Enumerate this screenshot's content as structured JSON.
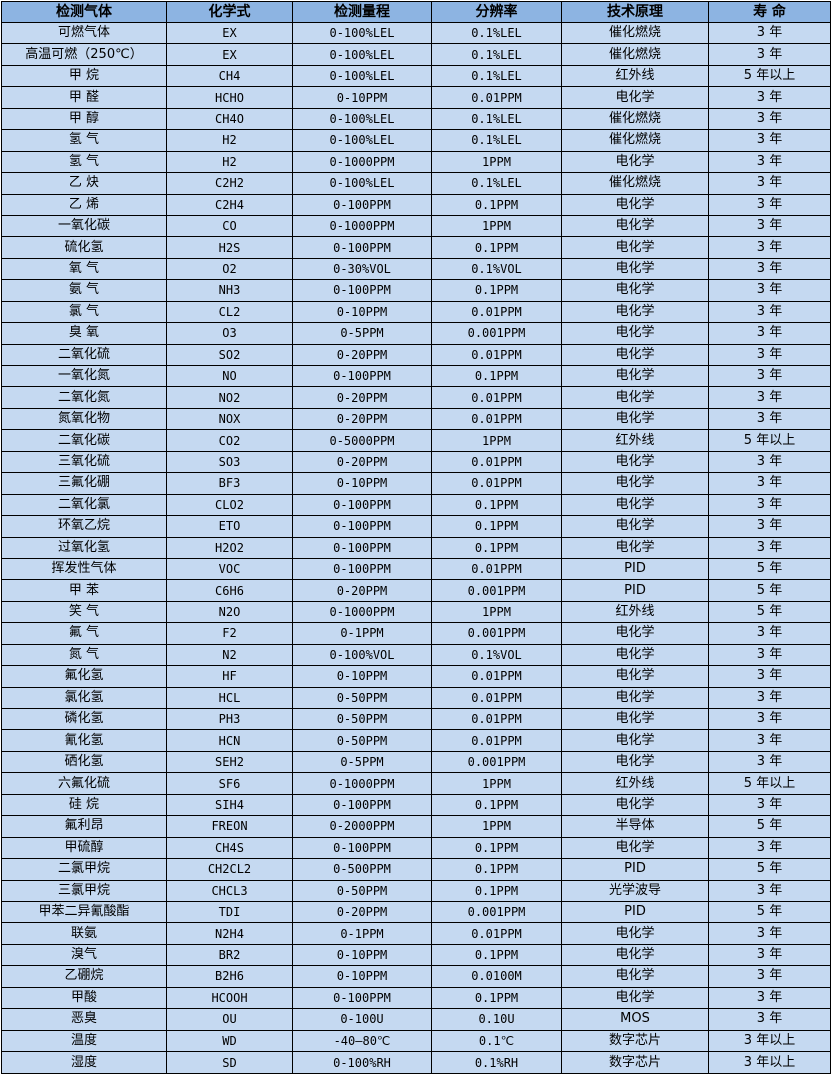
{
  "colors": {
    "header_bg": "#8db4e2",
    "row_bg": "#c5d9f1",
    "border": "#000000"
  },
  "table": {
    "headers": [
      "检测气体",
      "化学式",
      "检测量程",
      "分辨率",
      "技术原理",
      "寿 命"
    ],
    "rows": [
      [
        "可燃气体",
        "EX",
        "0-100%LEL",
        "0.1%LEL",
        "催化燃烧",
        "3 年"
      ],
      [
        "高温可燃（250℃）",
        "EX",
        "0-100%LEL",
        "0.1%LEL",
        "催化燃烧",
        "3 年"
      ],
      [
        "甲 烷",
        "CH4",
        "0-100%LEL",
        "0.1%LEL",
        "红外线",
        "5 年以上"
      ],
      [
        "甲 醛",
        "HCHO",
        "0-10PPM",
        "0.01PPM",
        "电化学",
        "3 年"
      ],
      [
        "甲 醇",
        "CH4O",
        "0-100%LEL",
        "0.1%LEL",
        "催化燃烧",
        "3 年"
      ],
      [
        "氢 气",
        "H2",
        "0-100%LEL",
        "0.1%LEL",
        "催化燃烧",
        "3 年"
      ],
      [
        "氢 气",
        "H2",
        "0-1000PPM",
        "1PPM",
        "电化学",
        "3 年"
      ],
      [
        "乙 炔",
        "C2H2",
        "0-100%LEL",
        "0.1%LEL",
        "催化燃烧",
        "3 年"
      ],
      [
        "乙 烯",
        "C2H4",
        "0-100PPM",
        "0.1PPM",
        "电化学",
        "3 年"
      ],
      [
        "一氧化碳",
        "CO",
        "0-1000PPM",
        "1PPM",
        "电化学",
        "3 年"
      ],
      [
        "硫化氢",
        "H2S",
        "0-100PPM",
        "0.1PPM",
        "电化学",
        "3 年"
      ],
      [
        "氧 气",
        "O2",
        "0-30%VOL",
        "0.1%VOL",
        "电化学",
        "3 年"
      ],
      [
        "氨 气",
        "NH3",
        "0-100PPM",
        "0.1PPM",
        "电化学",
        "3 年"
      ],
      [
        "氯 气",
        "CL2",
        "0-10PPM",
        "0.01PPM",
        "电化学",
        "3 年"
      ],
      [
        "臭 氧",
        "O3",
        "0-5PPM",
        "0.001PPM",
        "电化学",
        "3 年"
      ],
      [
        "二氧化硫",
        "SO2",
        "0-20PPM",
        "0.01PPM",
        "电化学",
        "3 年"
      ],
      [
        "一氧化氮",
        "NO",
        "0-100PPM",
        "0.1PPM",
        "电化学",
        "3 年"
      ],
      [
        "二氧化氮",
        "NO2",
        "0-20PPM",
        "0.01PPM",
        "电化学",
        "3 年"
      ],
      [
        "氮氧化物",
        "NOX",
        "0-20PPM",
        "0.01PPM",
        "电化学",
        "3 年"
      ],
      [
        "二氧化碳",
        "CO2",
        "0-5000PPM",
        "1PPM",
        "红外线",
        "5 年以上"
      ],
      [
        "三氧化硫",
        "SO3",
        "0-20PPM",
        "0.01PPM",
        "电化学",
        "3 年"
      ],
      [
        "三氟化硼",
        "BF3",
        "0-10PPM",
        "0.01PPM",
        "电化学",
        "3 年"
      ],
      [
        "二氧化氯",
        "CLO2",
        "0-100PPM",
        "0.1PPM",
        "电化学",
        "3 年"
      ],
      [
        "环氧乙烷",
        "ETO",
        "0-100PPM",
        "0.1PPM",
        "电化学",
        "3 年"
      ],
      [
        "过氧化氢",
        "H2O2",
        "0-100PPM",
        "0.1PPM",
        "电化学",
        "3 年"
      ],
      [
        "挥发性气体",
        "VOC",
        "0-100PPM",
        "0.01PPM",
        "PID",
        "5 年"
      ],
      [
        "甲 苯",
        "C6H6",
        "0-20PPM",
        "0.001PPM",
        "PID",
        "5 年"
      ],
      [
        "笑 气",
        "N2O",
        "0-1000PPM",
        "1PPM",
        "红外线",
        "5 年"
      ],
      [
        "氟 气",
        "F2",
        "0-1PPM",
        "0.001PPM",
        "电化学",
        "3 年"
      ],
      [
        "氮 气",
        "N2",
        "0-100%VOL",
        "0.1%VOL",
        "电化学",
        "3 年"
      ],
      [
        "氟化氢",
        "HF",
        "0-10PPM",
        "0.01PPM",
        "电化学",
        "3 年"
      ],
      [
        "氯化氢",
        "HCL",
        "0-50PPM",
        "0.01PPM",
        "电化学",
        "3 年"
      ],
      [
        "磷化氢",
        "PH3",
        "0-50PPM",
        "0.01PPM",
        "电化学",
        "3 年"
      ],
      [
        "氰化氢",
        "HCN",
        "0-50PPM",
        "0.01PPM",
        "电化学",
        "3 年"
      ],
      [
        "硒化氢",
        "SEH2",
        "0-5PPM",
        "0.001PPM",
        "电化学",
        "3 年"
      ],
      [
        "六氟化硫",
        "SF6",
        "0-1000PPM",
        "1PPM",
        "红外线",
        "5 年以上"
      ],
      [
        "硅 烷",
        "SIH4",
        "0-100PPM",
        "0.1PPM",
        "电化学",
        "3 年"
      ],
      [
        "氟利昂",
        "FREON",
        "0-2000PPM",
        "1PPM",
        "半导体",
        "5 年"
      ],
      [
        "甲硫醇",
        "CH4S",
        "0-100PPM",
        "0.1PPM",
        "电化学",
        "3 年"
      ],
      [
        "二氯甲烷",
        "CH2CL2",
        "0-500PPM",
        "0.1PPM",
        "PID",
        "5 年"
      ],
      [
        "三氯甲烷",
        "CHCL3",
        "0-50PPM",
        "0.1PPM",
        "光学波导",
        "3 年"
      ],
      [
        "甲苯二异氰酸酯",
        "TDI",
        "0-20PPM",
        "0.001PPM",
        "PID",
        "5 年"
      ],
      [
        "联氨",
        "N2H4",
        "0-1PPM",
        "0.01PPM",
        "电化学",
        "3 年"
      ],
      [
        "溴气",
        "BR2",
        "0-10PPM",
        "0.1PPM",
        "电化学",
        "3 年"
      ],
      [
        "乙硼烷",
        "B2H6",
        "0-10PPM",
        "0.0100M",
        "电化学",
        "3 年"
      ],
      [
        "甲酸",
        "HCOOH",
        "0-100PPM",
        "0.1PPM",
        "电化学",
        "3 年"
      ],
      [
        "恶臭",
        "OU",
        "0-100U",
        "0.10U",
        "MOS",
        "3 年"
      ],
      [
        "温度",
        "WD",
        "-40—80℃",
        "0.1℃",
        "数字芯片",
        "3 年以上"
      ],
      [
        "湿度",
        "SD",
        "0-100%RH",
        "0.1%RH",
        "数字芯片",
        "3 年以上"
      ]
    ]
  }
}
